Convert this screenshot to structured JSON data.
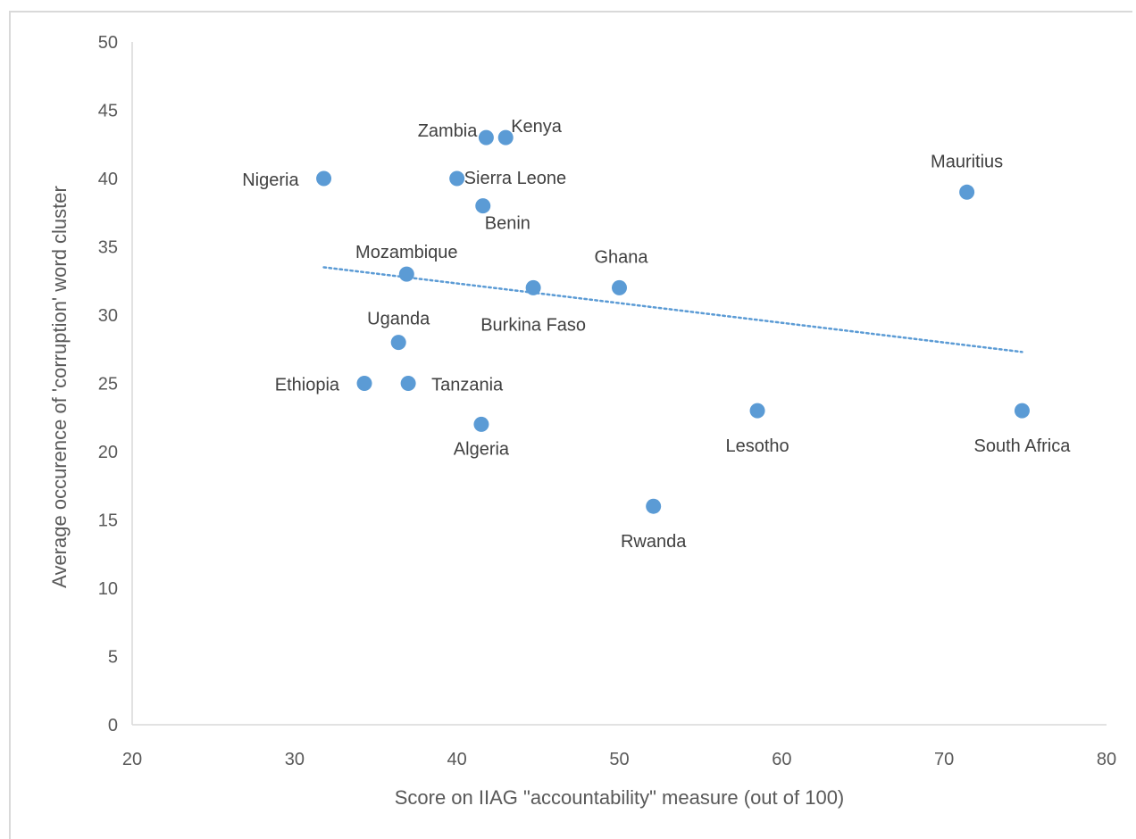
{
  "chart_data": {
    "type": "scatter",
    "title": "",
    "xlabel": "Score on IIAG \"accountability\" measure (out of 100)",
    "ylabel": "Average occurence of 'corruption' word cluster",
    "xlim": [
      20,
      80
    ],
    "ylim": [
      0,
      50
    ],
    "x_ticks": [
      "20",
      "30",
      "40",
      "50",
      "60",
      "70",
      "80"
    ],
    "y_ticks": [
      "0",
      "5",
      "10",
      "15",
      "20",
      "25",
      "30",
      "35",
      "40",
      "45",
      "50"
    ],
    "grid": false,
    "legend": "none",
    "marker_color": "#5b9bd5",
    "trendline": {
      "style": "dotted linear",
      "color": "#5b9bd5",
      "x": [
        31.8,
        74.8
      ],
      "y": [
        33.5,
        27.3
      ]
    },
    "points": [
      {
        "label": "Nigeria",
        "x": 31.8,
        "y": 40
      },
      {
        "label": "Zambia",
        "x": 41.8,
        "y": 43
      },
      {
        "label": "Kenya",
        "x": 43.0,
        "y": 43
      },
      {
        "label": "Sierra Leone",
        "x": 40.0,
        "y": 40
      },
      {
        "label": "Benin",
        "x": 41.6,
        "y": 38
      },
      {
        "label": "Mauritius",
        "x": 71.4,
        "y": 39
      },
      {
        "label": "Mozambique",
        "x": 36.9,
        "y": 33
      },
      {
        "label": "Burkina Faso",
        "x": 44.7,
        "y": 32
      },
      {
        "label": "Ghana",
        "x": 50.0,
        "y": 32
      },
      {
        "label": "Uganda",
        "x": 36.4,
        "y": 28
      },
      {
        "label": "Ethiopia",
        "x": 34.3,
        "y": 25
      },
      {
        "label": "Tanzania",
        "x": 37.0,
        "y": 25
      },
      {
        "label": "Algeria",
        "x": 41.5,
        "y": 22
      },
      {
        "label": "Lesotho",
        "x": 58.5,
        "y": 23
      },
      {
        "label": "South Africa",
        "x": 74.8,
        "y": 23
      },
      {
        "label": "Rwanda",
        "x": 52.1,
        "y": 16
      }
    ]
  }
}
